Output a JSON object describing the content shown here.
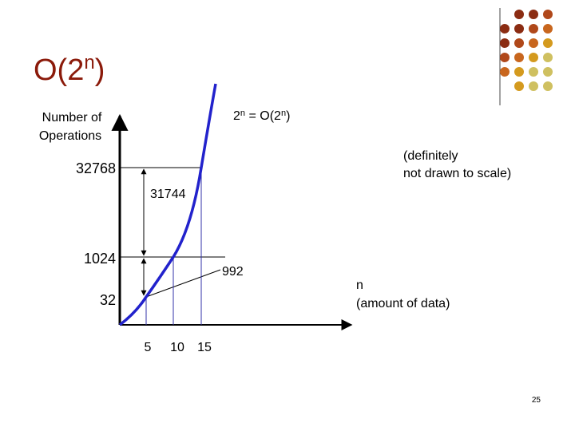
{
  "title": {
    "base": "O(2",
    "sup": "n",
    "close": ")"
  },
  "curve_label": {
    "a": "2",
    "a_sup": "n",
    "b": " = O(2",
    "b_sup": "n",
    "c": ")"
  },
  "y_axis_label": [
    "Number of",
    "Operations"
  ],
  "x_axis_label": [
    "n",
    "(amount of data)"
  ],
  "note": [
    "(definitely",
    "not drawn to scale)"
  ],
  "y_labels": [
    "32768",
    "1024",
    "32"
  ],
  "differences": [
    "31744",
    "992"
  ],
  "x_labels": [
    "5",
    "10",
    "15"
  ],
  "page_number": "25"
}
